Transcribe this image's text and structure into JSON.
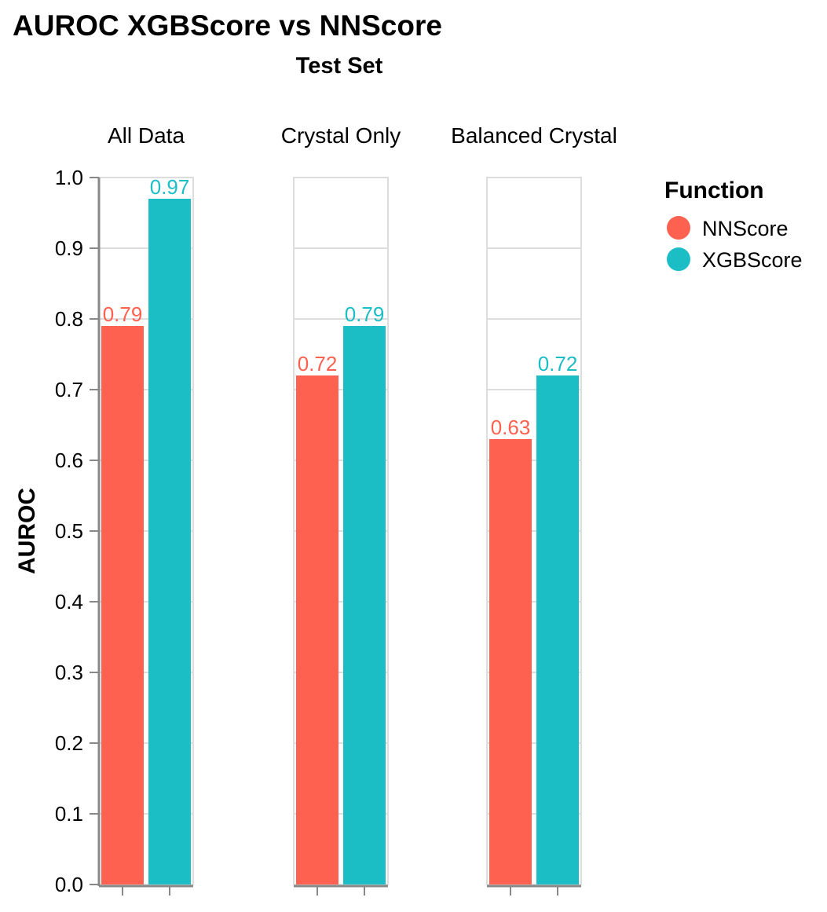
{
  "chart_data": {
    "type": "bar",
    "title": "AUROC XGBScore vs NNScore",
    "subtitle": "Test Set",
    "ylabel": "AUROC",
    "ylim": [
      0,
      1.0
    ],
    "yticks": [
      "0.0",
      "0.1",
      "0.2",
      "0.3",
      "0.4",
      "0.5",
      "0.6",
      "0.7",
      "0.8",
      "0.9",
      "1.0"
    ],
    "grid": true,
    "legend": {
      "title": "Function",
      "position": "right"
    },
    "categories": [
      "All Data",
      "Crystal Only",
      "Balanced Crystal"
    ],
    "series": [
      {
        "name": "NNScore",
        "color": "#ff6150",
        "values": [
          0.79,
          0.72,
          0.63
        ],
        "labels": [
          "0.79",
          "0.72",
          "0.63"
        ]
      },
      {
        "name": "XGBScore",
        "color": "#1cbec6",
        "values": [
          0.97,
          0.79,
          0.72
        ],
        "labels": [
          "0.97",
          "0.79",
          "0.72"
        ]
      }
    ]
  }
}
